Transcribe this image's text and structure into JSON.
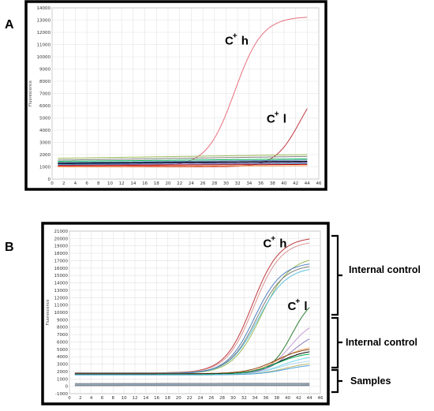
{
  "panels": [
    {
      "letter": "A",
      "chart_data": {
        "type": "line",
        "title": "",
        "xlabel": "",
        "ylabel": "Fluorescence",
        "xlim": [
          0,
          46
        ],
        "ylim": [
          0,
          14000
        ],
        "x_ticks": [
          0,
          2,
          4,
          6,
          8,
          10,
          12,
          14,
          16,
          18,
          20,
          22,
          24,
          26,
          28,
          30,
          32,
          34,
          36,
          38,
          40,
          42,
          44,
          46
        ],
        "y_ticks": [
          0,
          1000,
          2000,
          3000,
          4000,
          5000,
          6000,
          7000,
          8000,
          9000,
          10000,
          11000,
          12000,
          13000,
          14000
        ],
        "grid": true,
        "annotations": [
          {
            "base": "C",
            "sup": "+",
            "tail": "h",
            "x": 29.8,
            "y": 11000
          },
          {
            "base": "C",
            "sup": "+",
            "tail": "l",
            "x": 37.0,
            "y": 4600
          }
        ],
        "series": [
          {
            "color": "#e8707e",
            "kind": "sig",
            "base": 1050,
            "top": 13300,
            "mid": 31.5,
            "k": 0.42,
            "x0": 1,
            "x1": 44
          },
          {
            "color": "#c0393f",
            "kind": "sig",
            "base": 1000,
            "top": 8500,
            "mid": 42.8,
            "k": 0.46,
            "x0": 1,
            "x1": 44
          },
          {
            "color": "#9bbb59",
            "kind": "flat",
            "base": 1700,
            "rise": 300,
            "x0": 1,
            "x1": 44
          },
          {
            "color": "#7f7f7f",
            "kind": "flat",
            "base": 1550,
            "rise": 300,
            "x0": 1,
            "x1": 44
          },
          {
            "color": "#4f81bd",
            "kind": "flat",
            "base": 1350,
            "rise": 200,
            "x0": 1,
            "x1": 44
          },
          {
            "color": "#1f1f7a",
            "kind": "flat",
            "base": 1250,
            "rise": 150,
            "x0": 1,
            "x1": 44
          },
          {
            "color": "#17becf",
            "kind": "flat",
            "base": 1200,
            "rise": 50,
            "x0": 1,
            "x1": 44
          },
          {
            "color": "#f79646",
            "kind": "flat",
            "base": 1000,
            "rise": 100,
            "x0": 1,
            "x1": 44
          },
          {
            "color": "#8064a2",
            "kind": "flat",
            "base": 1150,
            "rise": 150,
            "x0": 1,
            "x1": 44
          },
          {
            "color": "#c00000",
            "kind": "flat",
            "base": 1100,
            "rise": 100,
            "x0": 1,
            "x1": 44
          },
          {
            "color": "#000000",
            "kind": "flat",
            "base": 1300,
            "rise": 150,
            "x0": 1,
            "x1": 44
          },
          {
            "color": "#00b050",
            "kind": "flat",
            "base": 1450,
            "rise": 200,
            "x0": 1,
            "x1": 44
          }
        ]
      }
    },
    {
      "letter": "B",
      "chart_data": {
        "type": "line",
        "title": "",
        "xlabel": "",
        "ylabel": "Fluorescence",
        "xlim": [
          0,
          46
        ],
        "ylim": [
          -1000,
          21000
        ],
        "x_ticks": [
          0,
          2,
          4,
          6,
          8,
          10,
          12,
          14,
          16,
          18,
          20,
          22,
          24,
          26,
          28,
          30,
          32,
          34,
          36,
          38,
          40,
          42,
          44,
          46
        ],
        "y_ticks": [
          -1000,
          0,
          1000,
          2000,
          3000,
          4000,
          5000,
          6000,
          7000,
          8000,
          9000,
          10000,
          11000,
          12000,
          13000,
          14000,
          15000,
          16000,
          17000,
          18000,
          19000,
          20000,
          21000
        ],
        "grid": true,
        "annotations": [
          {
            "base": "C",
            "sup": "+",
            "tail": "h",
            "x": 35.5,
            "y": 18800
          },
          {
            "base": "C",
            "sup": "+",
            "tail": "l",
            "x": 40.0,
            "y": 10300
          }
        ],
        "side_labels": [
          "Internal control",
          "Internal control",
          "Samples"
        ],
        "series": [
          {
            "color": "#c0393f",
            "kind": "sig",
            "base": 1800,
            "top": 20200,
            "mid": 33.5,
            "k": 0.4,
            "x0": 1,
            "x1": 44
          },
          {
            "color": "#d99694",
            "kind": "sig",
            "base": 1800,
            "top": 19700,
            "mid": 33.8,
            "k": 0.4,
            "x0": 1,
            "x1": 44
          },
          {
            "color": "#9bbb59",
            "kind": "sig",
            "base": 1700,
            "top": 17600,
            "mid": 35.2,
            "k": 0.38,
            "x0": 1,
            "x1": 44
          },
          {
            "color": "#5bc0de",
            "kind": "sig",
            "base": 1700,
            "top": 16200,
            "mid": 34.5,
            "k": 0.38,
            "x0": 1,
            "x1": 44
          },
          {
            "color": "#7f7f7f",
            "kind": "sig",
            "base": 1800,
            "top": 16500,
            "mid": 34.3,
            "k": 0.4,
            "x0": 1,
            "x1": 44
          },
          {
            "color": "#4f81bd",
            "kind": "sig",
            "base": 1700,
            "top": 16800,
            "mid": 33.9,
            "k": 0.4,
            "x0": 1,
            "x1": 44
          },
          {
            "color": "#2e7d32",
            "kind": "sig",
            "base": 1650,
            "top": 12500,
            "mid": 40.8,
            "k": 0.5,
            "x0": 1,
            "x1": 44
          },
          {
            "color": "#c39bd3",
            "kind": "sig",
            "base": 1650,
            "top": 9200,
            "mid": 40.5,
            "k": 0.45,
            "x0": 1,
            "x1": 44
          },
          {
            "color": "#8e7cc3",
            "kind": "sig",
            "base": 1600,
            "top": 7500,
            "mid": 40.5,
            "k": 0.42,
            "x0": 1,
            "x1": 44
          },
          {
            "color": "#f0b27a",
            "kind": "sig",
            "base": 1650,
            "top": 5600,
            "mid": 38.5,
            "k": 0.4,
            "x0": 1,
            "x1": 44
          },
          {
            "color": "#8b4513",
            "kind": "sig",
            "base": 1700,
            "top": 5300,
            "mid": 37.8,
            "k": 0.38,
            "x0": 1,
            "x1": 44
          },
          {
            "color": "#000000",
            "kind": "sig",
            "base": 1650,
            "top": 5000,
            "mid": 38.5,
            "k": 0.4,
            "x0": 1,
            "x1": 44
          },
          {
            "color": "#00b050",
            "kind": "sig",
            "base": 1600,
            "top": 4600,
            "mid": 38.0,
            "k": 0.4,
            "x0": 1,
            "x1": 44
          },
          {
            "color": "#76d7ea",
            "kind": "sig",
            "base": 1550,
            "top": 4200,
            "mid": 39.0,
            "k": 0.4,
            "x0": 1,
            "x1": 44
          },
          {
            "color": "#aed6f1",
            "kind": "sig",
            "base": 1550,
            "top": 3600,
            "mid": 38.5,
            "k": 0.4,
            "x0": 1,
            "x1": 44
          },
          {
            "color": "#bdb76b",
            "kind": "sig",
            "base": 1550,
            "top": 3300,
            "mid": 39.5,
            "k": 0.4,
            "x0": 1,
            "x1": 44
          },
          {
            "color": "#4aa3df",
            "kind": "sig",
            "base": 1550,
            "top": 3000,
            "mid": 39.5,
            "k": 0.4,
            "x0": 1,
            "x1": 44
          },
          {
            "color": "#9e9e9e",
            "kind": "flat",
            "base": 380,
            "rise": 40,
            "x0": 1,
            "x1": 44
          },
          {
            "color": "#7a8fa6",
            "kind": "flat",
            "base": 300,
            "rise": 30,
            "x0": 1,
            "x1": 44
          },
          {
            "color": "#8faabf",
            "kind": "flat",
            "base": 220,
            "rise": 30,
            "x0": 1,
            "x1": 44
          },
          {
            "color": "#a0a0a0",
            "kind": "flat",
            "base": 150,
            "rise": 20,
            "x0": 1,
            "x1": 44
          },
          {
            "color": "#6d7b8d",
            "kind": "flat",
            "base": 80,
            "rise": 20,
            "x0": 1,
            "x1": 44
          }
        ]
      }
    }
  ]
}
